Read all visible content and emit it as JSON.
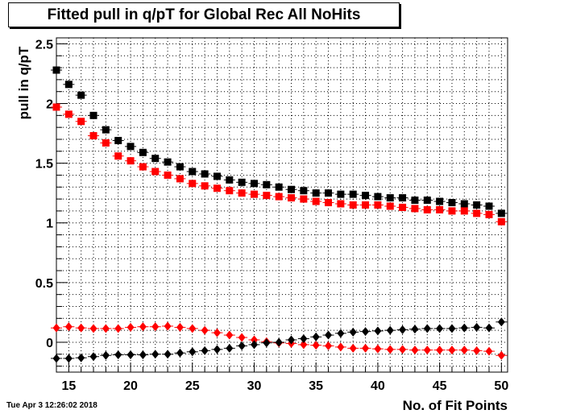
{
  "title": "Fitted pull in q/pT for Global Rec All NoHits",
  "footer_timestamp": "Tue Apr  3 12:26:02 2018",
  "chart_data": {
    "type": "scatter",
    "title": "Fitted pull in q/pT for Global Rec All NoHits",
    "xlabel": "No. of Fit Points",
    "ylabel": "pull in q/pT",
    "xlim": [
      14,
      50.5
    ],
    "ylim": [
      -0.25,
      2.55
    ],
    "xticks": [
      15,
      20,
      25,
      30,
      35,
      40,
      45,
      50
    ],
    "xtick_labels": [
      "15",
      "20",
      "25",
      "30",
      "35",
      "40",
      "45",
      "50"
    ],
    "yticks": [
      0,
      0.5,
      1,
      1.5,
      2,
      2.5
    ],
    "ytick_labels": [
      "0",
      "0.5",
      "1",
      "1.5",
      "2",
      "2.5"
    ],
    "grid": true,
    "x": [
      14,
      15,
      16,
      17,
      18,
      19,
      20,
      21,
      22,
      23,
      24,
      25,
      26,
      27,
      28,
      29,
      30,
      31,
      32,
      33,
      34,
      35,
      36,
      37,
      38,
      39,
      40,
      41,
      42,
      43,
      44,
      45,
      46,
      47,
      48,
      49,
      50
    ],
    "series": [
      {
        "marker": "square",
        "color": "#000000",
        "values": [
          2.28,
          2.16,
          2.07,
          1.9,
          1.78,
          1.69,
          1.64,
          1.59,
          1.54,
          1.51,
          1.47,
          1.43,
          1.41,
          1.39,
          1.36,
          1.34,
          1.33,
          1.32,
          1.3,
          1.28,
          1.27,
          1.25,
          1.25,
          1.24,
          1.24,
          1.23,
          1.22,
          1.21,
          1.21,
          1.19,
          1.19,
          1.18,
          1.17,
          1.16,
          1.15,
          1.14,
          1.08
        ]
      },
      {
        "marker": "square",
        "color": "#ff0000",
        "values": [
          1.97,
          1.91,
          1.85,
          1.73,
          1.67,
          1.56,
          1.52,
          1.47,
          1.43,
          1.4,
          1.37,
          1.33,
          1.31,
          1.29,
          1.27,
          1.25,
          1.24,
          1.23,
          1.22,
          1.21,
          1.2,
          1.18,
          1.17,
          1.16,
          1.15,
          1.15,
          1.15,
          1.14,
          1.13,
          1.12,
          1.11,
          1.11,
          1.1,
          1.1,
          1.08,
          1.07,
          1.01
        ]
      },
      {
        "marker": "diamond",
        "color": "#ff0000",
        "values": [
          0.12,
          0.13,
          0.12,
          0.115,
          0.115,
          0.115,
          0.125,
          0.13,
          0.13,
          0.135,
          0.125,
          0.115,
          0.1,
          0.08,
          0.06,
          0.04,
          0.02,
          0.005,
          -0.005,
          -0.01,
          -0.02,
          -0.025,
          -0.03,
          -0.04,
          -0.05,
          -0.05,
          -0.055,
          -0.06,
          -0.06,
          -0.065,
          -0.065,
          -0.065,
          -0.065,
          -0.065,
          -0.07,
          -0.075,
          -0.11
        ]
      },
      {
        "marker": "diamond",
        "color": "#000000",
        "values": [
          -0.135,
          -0.135,
          -0.13,
          -0.12,
          -0.11,
          -0.105,
          -0.105,
          -0.105,
          -0.1,
          -0.1,
          -0.09,
          -0.08,
          -0.07,
          -0.06,
          -0.05,
          -0.03,
          -0.02,
          -0.005,
          0.0,
          0.02,
          0.03,
          0.045,
          0.06,
          0.075,
          0.085,
          0.09,
          0.095,
          0.1,
          0.105,
          0.11,
          0.115,
          0.115,
          0.115,
          0.12,
          0.125,
          0.12,
          0.17
        ]
      }
    ]
  }
}
